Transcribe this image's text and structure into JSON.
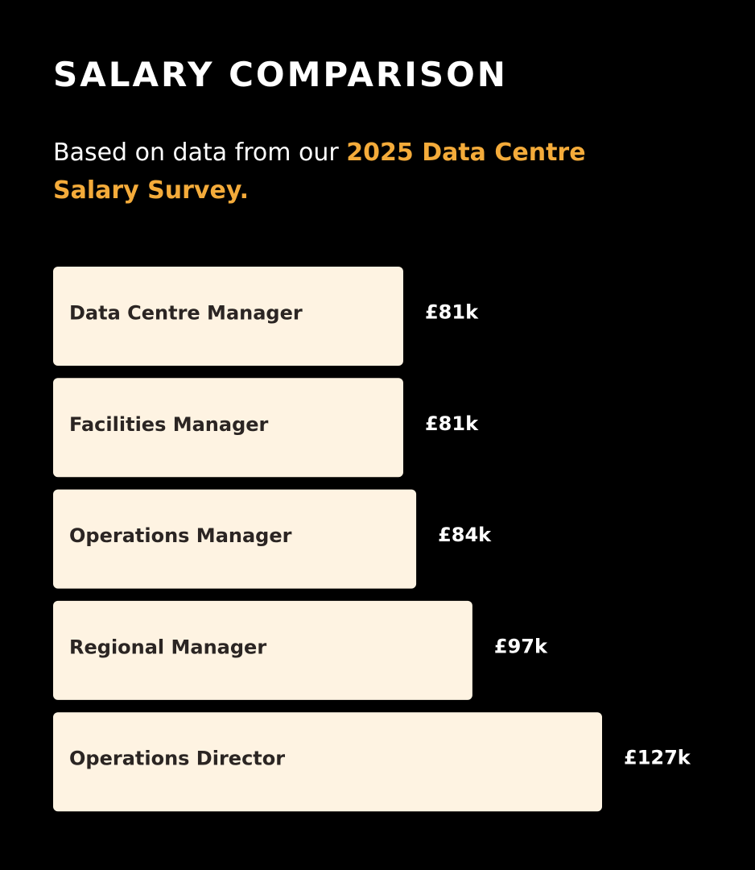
{
  "chart_data": {
    "type": "bar",
    "orientation": "horizontal",
    "title": "SALARY COMPARISON",
    "subtitle": "Based on data from our",
    "subtitle_highlight": "2025 Data Centre Salary Survey.",
    "highlight_color": "#f4ab3a",
    "color": "#fef3e2",
    "categories": [
      "Data Centre Manager",
      "Facilities Manager",
      "Operations Manager",
      "Regional Manager",
      "Operations Director"
    ],
    "values": [
      81,
      81,
      84,
      97,
      127
    ],
    "value_labels": [
      "£81k",
      "£81k",
      "£84k",
      "£97k",
      "£127k"
    ]
  }
}
